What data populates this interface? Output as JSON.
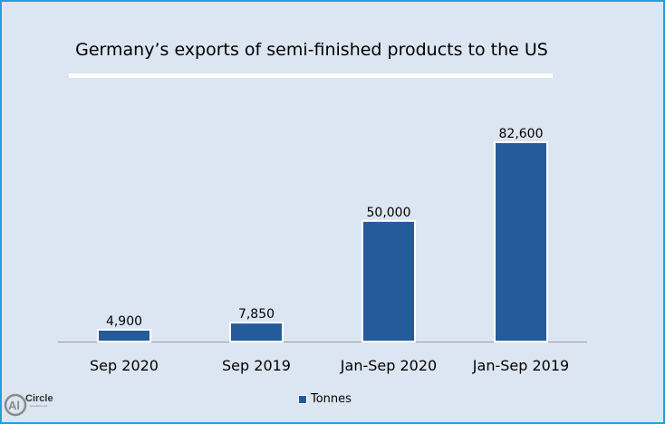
{
  "chart_data": {
    "type": "bar",
    "title": "Germany’s exports of semi-finished products to the US",
    "categories": [
      "Sep 2020",
      "Sep 2019",
      "Jan-Sep 2020",
      "Jan-Sep 2019"
    ],
    "series": [
      {
        "name": "Tonnes",
        "values": [
          4900,
          7850,
          50000,
          82600
        ]
      }
    ],
    "data_labels": [
      "4,900",
      "7,850",
      "50,000",
      "82,600"
    ],
    "xlabel": "",
    "ylabel": "",
    "ylim": [
      0,
      82600
    ],
    "grid": false,
    "legend": "bottom",
    "colors": {
      "bar": "#255a9b",
      "background": "#dce6f2",
      "border": "#1ea0e0"
    }
  },
  "logo": {
    "text": "Circle",
    "mark": "Al",
    "url_text": "www.alcircle.com"
  }
}
